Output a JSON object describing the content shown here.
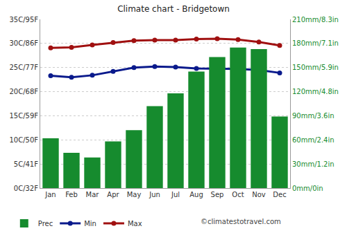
{
  "chart_data": {
    "type": "bar",
    "title": "Climate chart - Bridgetown",
    "categories": [
      "Jan",
      "Feb",
      "Mar",
      "Apr",
      "May",
      "Jun",
      "Jul",
      "Aug",
      "Sep",
      "Oct",
      "Nov",
      "Dec"
    ],
    "series": [
      {
        "name": "Prec",
        "type": "bar",
        "axis": "y2",
        "color": "#168b2e",
        "values": [
          62,
          44,
          38,
          58,
          72,
          102,
          118,
          145,
          163,
          175,
          173,
          89
        ]
      },
      {
        "name": "Min",
        "type": "line",
        "color": "#0a1a8c",
        "marker": "circle",
        "line_style": "solid",
        "values": [
          23.3,
          23.0,
          23.4,
          24.2,
          25.0,
          25.2,
          25.1,
          24.8,
          24.8,
          24.7,
          24.5,
          23.9
        ]
      },
      {
        "name": "Max",
        "type": "line",
        "color": "#a01010",
        "marker": "circle",
        "line_style": "solid",
        "values": [
          29.1,
          29.2,
          29.7,
          30.2,
          30.6,
          30.7,
          30.7,
          30.9,
          31.0,
          30.8,
          30.3,
          29.6
        ]
      }
    ],
    "ylim": [
      0,
      35
    ],
    "yticks": [
      {
        "value": 0,
        "label": "0C/32F"
      },
      {
        "value": 5,
        "label": "5C/41F"
      },
      {
        "value": 10,
        "label": "10C/50F"
      },
      {
        "value": 15,
        "label": "15C/59F"
      },
      {
        "value": 20,
        "label": "20C/68F"
      },
      {
        "value": 25,
        "label": "25C/77F"
      },
      {
        "value": 30,
        "label": "30C/86F"
      },
      {
        "value": 35,
        "label": "35C/95F"
      }
    ],
    "y2lim": [
      0,
      210
    ],
    "y2ticks": [
      {
        "value": 0,
        "label": "0mm/0in"
      },
      {
        "value": 30,
        "label": "30mm/1.2in"
      },
      {
        "value": 60,
        "label": "60mm/2.4in"
      },
      {
        "value": 90,
        "label": "90mm/3.6in"
      },
      {
        "value": 120,
        "label": "120mm/4.8in"
      },
      {
        "value": 150,
        "label": "150mm/5.9in"
      },
      {
        "value": 180,
        "label": "180mm/7.1in"
      },
      {
        "value": 210,
        "label": "210mm/8.3in"
      }
    ],
    "grid": true,
    "legend": "bottom",
    "annotations": [
      "©climatestotravel.com"
    ]
  }
}
